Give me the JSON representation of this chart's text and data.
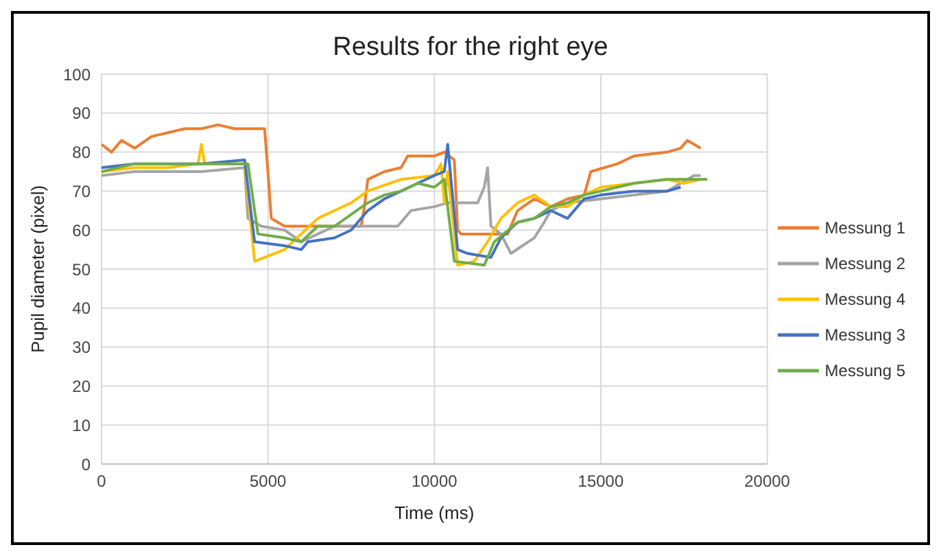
{
  "chart_data": {
    "type": "line",
    "title": "Results for the right eye",
    "xlabel": "Time (ms)",
    "ylabel": "Pupil diameter (pixel)",
    "xlim": [
      0,
      20000
    ],
    "xticks": [
      0,
      5000,
      10000,
      15000,
      20000
    ],
    "ylim": [
      0,
      100
    ],
    "yticks": [
      0,
      10,
      20,
      30,
      40,
      50,
      60,
      70,
      80,
      90,
      100
    ],
    "grid": true,
    "legend": "right",
    "marker": "none",
    "line_style": "solid",
    "series": [
      {
        "name": "Messung 1",
        "color": "#ed7d31",
        "x": [
          0,
          300,
          600,
          1000,
          1500,
          2000,
          2500,
          3000,
          3500,
          4000,
          4500,
          4900,
          5000,
          5100,
          5500,
          6500,
          7800,
          7900,
          8000,
          8500,
          9000,
          9200,
          10000,
          10300,
          10600,
          10700,
          10800,
          11500,
          12200,
          12500,
          13000,
          13500,
          14000,
          14500,
          14700,
          15500,
          16000,
          17000,
          17400,
          17600,
          18000
        ],
        "values": [
          82,
          80,
          83,
          81,
          84,
          85,
          86,
          86,
          87,
          86,
          86,
          86,
          75,
          63,
          61,
          61,
          61,
          66,
          73,
          75,
          76,
          79,
          79,
          80,
          78,
          60,
          59,
          59,
          59,
          65,
          68,
          66,
          68,
          69,
          75,
          77,
          79,
          80,
          81,
          83,
          81
        ]
      },
      {
        "name": "Messung 2",
        "color": "#a5a5a5",
        "x": [
          0,
          1000,
          2000,
          3000,
          4300,
          4400,
          4800,
          5500,
          6000,
          6500,
          7000,
          8000,
          8900,
          9300,
          10000,
          10400,
          11300,
          11500,
          11600,
          11700,
          12000,
          12300,
          13000,
          13300,
          13500,
          14000,
          15000,
          16000,
          17000,
          17800,
          18000
        ],
        "values": [
          74,
          75,
          75,
          75,
          76,
          63,
          61,
          60,
          57,
          59,
          61,
          61,
          61,
          65,
          66,
          67,
          67,
          71,
          76,
          61,
          59,
          54,
          58,
          62,
          65,
          67,
          68,
          69,
          70,
          74,
          74
        ]
      },
      {
        "name": "Messung 4",
        "color": "#ffc000",
        "x": [
          0,
          1000,
          2000,
          2900,
          3000,
          3100,
          4300,
          4600,
          5500,
          6000,
          6500,
          7000,
          7500,
          8000,
          9000,
          10000,
          10200,
          10300,
          10400,
          10700,
          11200,
          11600,
          12000,
          12500,
          13000,
          13500,
          14000,
          14500,
          15000,
          16000,
          17000,
          17500,
          18000
        ],
        "values": [
          75,
          76,
          76,
          77,
          82,
          77,
          77,
          52,
          55,
          59,
          63,
          65,
          67,
          70,
          73,
          74,
          77,
          67,
          75,
          51,
          52,
          57,
          63,
          67,
          69,
          66,
          66,
          69,
          71,
          72,
          73,
          72,
          73
        ]
      },
      {
        "name": "Messung 3",
        "color": "#4472c4",
        "x": [
          0,
          1000,
          2000,
          3000,
          4300,
          4600,
          5500,
          6000,
          6200,
          7000,
          7500,
          8000,
          8500,
          9000,
          9500,
          10000,
          10300,
          10400,
          10700,
          11000,
          11700,
          12000,
          12500,
          13000,
          13500,
          14000,
          14500,
          15000,
          16000,
          17000,
          17400
        ],
        "values": [
          76,
          77,
          77,
          77,
          78,
          57,
          56,
          55,
          57,
          58,
          60,
          65,
          68,
          70,
          72,
          74,
          75,
          82,
          55,
          54,
          53,
          58,
          62,
          63,
          65,
          63,
          68,
          69,
          70,
          70,
          71
        ]
      },
      {
        "name": "Messung 5",
        "color": "#70ad47",
        "x": [
          0,
          1000,
          2000,
          3000,
          4400,
          4700,
          5500,
          6000,
          6500,
          7000,
          7500,
          8000,
          8500,
          9000,
          9500,
          10000,
          10300,
          10600,
          11500,
          11800,
          12500,
          13000,
          13500,
          14000,
          14500,
          15000,
          16000,
          17000,
          18200
        ],
        "values": [
          75,
          77,
          77,
          77,
          77,
          59,
          58,
          57,
          61,
          61,
          64,
          67,
          69,
          70,
          72,
          71,
          73,
          52,
          51,
          57,
          62,
          63,
          66,
          67,
          69,
          70,
          72,
          73,
          73
        ]
      }
    ]
  }
}
